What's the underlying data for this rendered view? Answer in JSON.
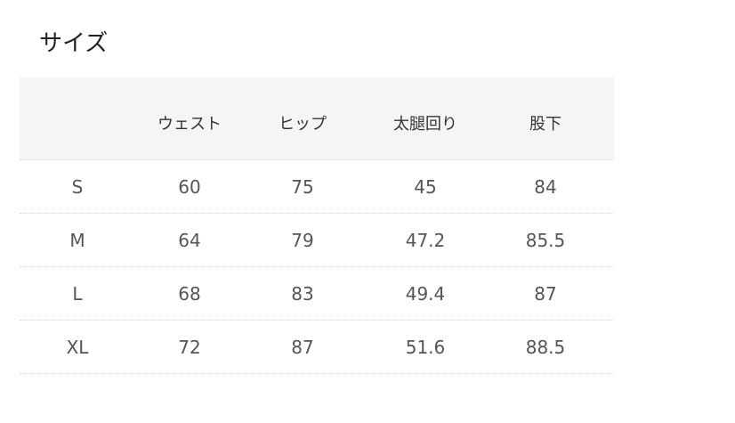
{
  "title": "サイズ",
  "table": {
    "headers": [
      "",
      "ウェスト",
      "ヒップ",
      "太腿回り",
      "股下"
    ],
    "rows": [
      [
        "S",
        "60",
        "75",
        "45",
        "84"
      ],
      [
        "M",
        "64",
        "79",
        "47.2",
        "85.5"
      ],
      [
        "L",
        "68",
        "83",
        "49.4",
        "87"
      ],
      [
        "XL",
        "72",
        "87",
        "51.6",
        "88.5"
      ]
    ]
  }
}
